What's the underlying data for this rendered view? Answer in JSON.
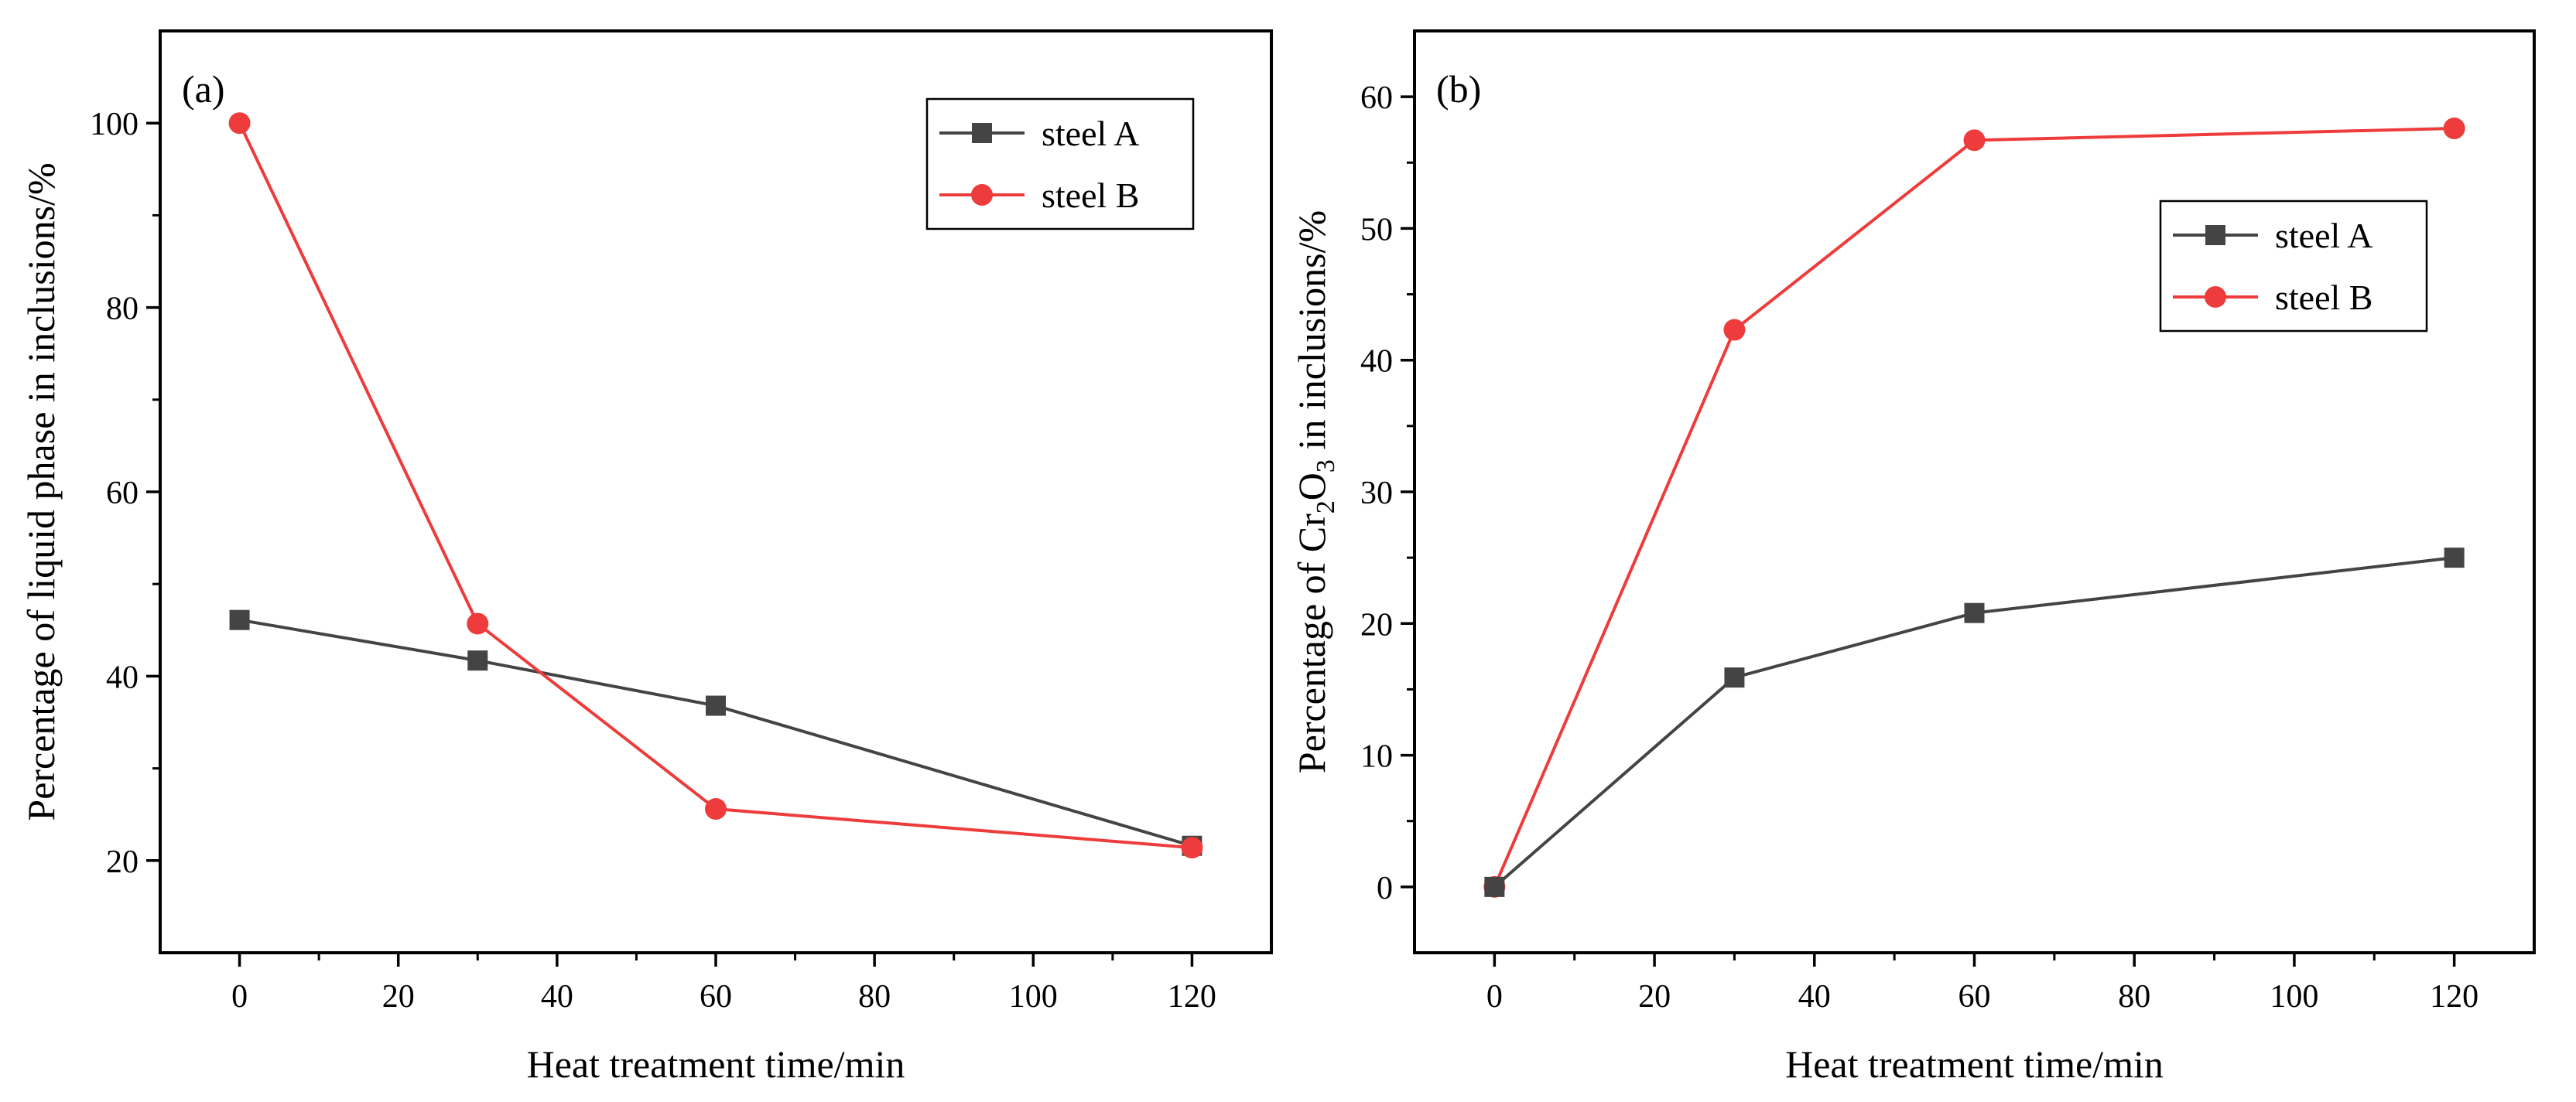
{
  "chart_data": [
    {
      "type": "line",
      "panel_label": "(a)",
      "xlabel": "Heat treatment time/min",
      "ylabel": "Percentage of liquid phase in inclusions/%",
      "xlim": [
        -10,
        130
      ],
      "ylim": [
        10,
        110
      ],
      "xticks": [
        0,
        20,
        40,
        60,
        80,
        100,
        120
      ],
      "yticks": [
        20,
        40,
        60,
        80,
        100
      ],
      "legend_position": "top-right",
      "x": [
        0,
        30,
        60,
        120
      ],
      "series": [
        {
          "name": "steel A",
          "color": "#444444",
          "marker": "square",
          "values": [
            46.1,
            41.7,
            36.8,
            21.6
          ]
        },
        {
          "name": "steel B",
          "color": "#ee3b3b",
          "marker": "circle",
          "values": [
            100,
            45.7,
            25.6,
            21.4
          ]
        }
      ]
    },
    {
      "type": "line",
      "panel_label": "(b)",
      "xlabel": "Heat treatment time/min",
      "ylabel_parts": [
        "Percentage of Cr",
        "2",
        "O",
        "3",
        " in inclusions/%"
      ],
      "xlim": [
        -10,
        130
      ],
      "ylim": [
        -5,
        65
      ],
      "xticks": [
        0,
        20,
        40,
        60,
        80,
        100,
        120
      ],
      "yticks": [
        0,
        10,
        20,
        30,
        40,
        50,
        60
      ],
      "legend_position": "upper-right",
      "x": [
        0,
        30,
        60,
        120
      ],
      "series": [
        {
          "name": "steel A",
          "color": "#444444",
          "marker": "square",
          "values": [
            0,
            15.9,
            20.8,
            25.0
          ]
        },
        {
          "name": "steel B",
          "color": "#ee3b3b",
          "marker": "circle",
          "values": [
            0,
            42.3,
            56.7,
            57.6
          ]
        }
      ]
    }
  ]
}
